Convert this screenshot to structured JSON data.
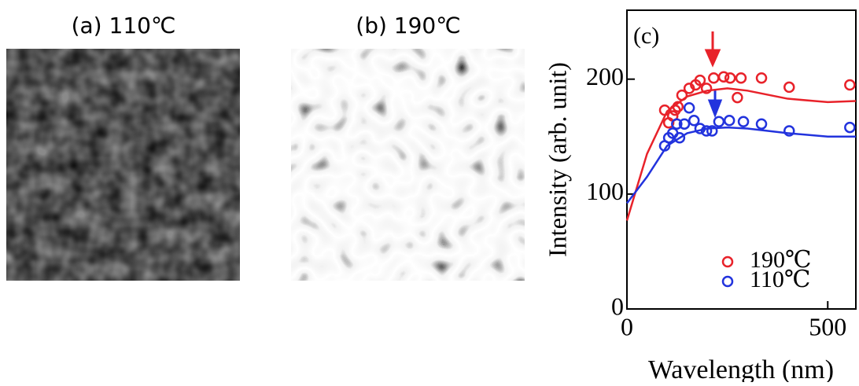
{
  "panels": [
    {
      "title": "(a) 110℃"
    },
    {
      "title": "(b) 190℃"
    }
  ],
  "chart_data": {
    "type": "scatter",
    "annotation": "(c)",
    "x_label": "Wavelength (nm)",
    "y_label": "Intensity (arb. unit)",
    "xlim": [
      0,
      570
    ],
    "ylim": [
      0,
      260
    ],
    "xticks": [
      0,
      500
    ],
    "yticks": [
      0,
      100,
      200
    ],
    "legend": "lower right",
    "series": [
      {
        "name": "190℃",
        "color": "#e8222a",
        "x": [
          94,
          104,
          114,
          120,
          127,
          137,
          155,
          171,
          182,
          198,
          216,
          241,
          257,
          275,
          284,
          335,
          404,
          555
        ],
        "values": [
          173,
          162,
          168,
          173,
          176,
          186,
          192,
          195,
          199,
          192,
          201,
          202,
          201,
          184,
          201,
          201,
          193,
          195
        ]
      },
      {
        "name": "110℃",
        "color": "#2233dd",
        "x": [
          94,
          104,
          114,
          124,
          131,
          143,
          155,
          167,
          182,
          198,
          212,
          229,
          255,
          290,
          335,
          404,
          555
        ],
        "values": [
          142,
          149,
          153,
          161,
          149,
          161,
          175,
          164,
          157,
          155,
          155,
          163,
          164,
          163,
          161,
          155,
          158
        ]
      }
    ],
    "fits": [
      {
        "color": "#e8222a",
        "x": [
          0,
          50,
          100,
          150,
          200,
          250,
          300,
          400,
          500,
          570
        ],
        "values": [
          77,
          135,
          172,
          185,
          190,
          192,
          190,
          183,
          180,
          181
        ]
      },
      {
        "color": "#2233dd",
        "x": [
          0,
          50,
          100,
          150,
          200,
          250,
          300,
          400,
          500,
          570
        ],
        "values": [
          92,
          115,
          142,
          153,
          157,
          158,
          157,
          153,
          150,
          150
        ]
      }
    ]
  }
}
